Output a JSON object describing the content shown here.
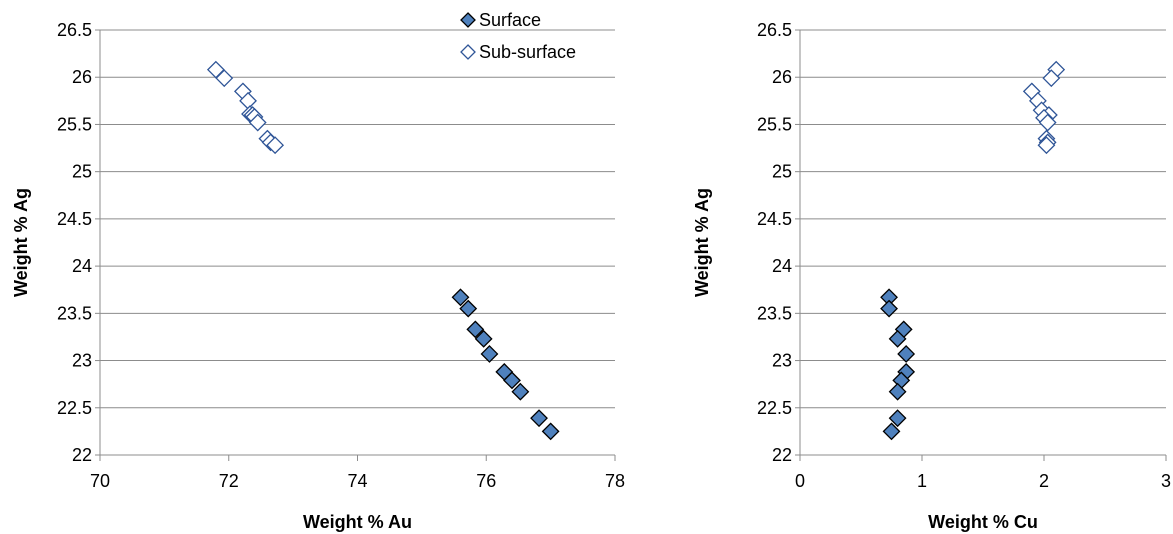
{
  "chart_data": [
    {
      "type": "scatter",
      "xlabel": "Weight % Au",
      "ylabel": "Weight % Ag",
      "xlim": [
        70,
        78
      ],
      "ylim": [
        22,
        26.5
      ],
      "xticks": [
        "70",
        "72",
        "74",
        "76",
        "78"
      ],
      "yticks": [
        "22",
        "22.5",
        "23",
        "23.5",
        "24",
        "24.5",
        "25",
        "25.5",
        "26",
        "26.5"
      ],
      "grid": "horizontal",
      "legend": "top-right",
      "series": [
        {
          "name": "Surface",
          "marker": "filled-diamond",
          "color": "#4f81bd",
          "points": [
            [
              75.6,
              23.67
            ],
            [
              75.72,
              23.55
            ],
            [
              75.83,
              23.33
            ],
            [
              75.96,
              23.23
            ],
            [
              76.05,
              23.07
            ],
            [
              76.28,
              22.88
            ],
            [
              76.4,
              22.79
            ],
            [
              76.53,
              22.67
            ],
            [
              76.82,
              22.39
            ],
            [
              77.0,
              22.25
            ]
          ]
        },
        {
          "name": "Sub-surface",
          "marker": "open-diamond",
          "color": "#2f5597",
          "points": [
            [
              71.8,
              26.08
            ],
            [
              71.93,
              25.99
            ],
            [
              72.22,
              25.85
            ],
            [
              72.3,
              25.75
            ],
            [
              72.33,
              25.61
            ],
            [
              72.37,
              25.6
            ],
            [
              72.4,
              25.58
            ],
            [
              72.45,
              25.52
            ],
            [
              72.6,
              25.35
            ],
            [
              72.65,
              25.31
            ],
            [
              72.72,
              25.28
            ]
          ]
        }
      ]
    },
    {
      "type": "scatter",
      "xlabel": "Weight % Cu",
      "ylabel": "Weight % Ag",
      "xlim": [
        0,
        3
      ],
      "ylim": [
        22,
        26.5
      ],
      "xticks": [
        "0",
        "1",
        "2",
        "3"
      ],
      "yticks": [
        "22",
        "22.5",
        "23",
        "23.5",
        "24",
        "24.5",
        "25",
        "25.5",
        "26",
        "26.5"
      ],
      "grid": "horizontal",
      "series": [
        {
          "name": "Surface",
          "marker": "filled-diamond",
          "color": "#4f81bd",
          "points": [
            [
              0.73,
              23.67
            ],
            [
              0.73,
              23.55
            ],
            [
              0.85,
              23.33
            ],
            [
              0.8,
              23.23
            ],
            [
              0.87,
              23.07
            ],
            [
              0.87,
              22.88
            ],
            [
              0.83,
              22.79
            ],
            [
              0.8,
              22.67
            ],
            [
              0.8,
              22.39
            ],
            [
              0.75,
              22.25
            ]
          ]
        },
        {
          "name": "Sub-surface",
          "marker": "open-diamond",
          "color": "#2f5597",
          "points": [
            [
              2.1,
              26.08
            ],
            [
              2.06,
              25.99
            ],
            [
              1.9,
              25.85
            ],
            [
              1.95,
              25.75
            ],
            [
              1.98,
              25.65
            ],
            [
              2.04,
              25.6
            ],
            [
              2.0,
              25.57
            ],
            [
              2.03,
              25.52
            ],
            [
              2.02,
              25.35
            ],
            [
              2.03,
              25.31
            ],
            [
              2.02,
              25.28
            ]
          ]
        }
      ]
    }
  ]
}
